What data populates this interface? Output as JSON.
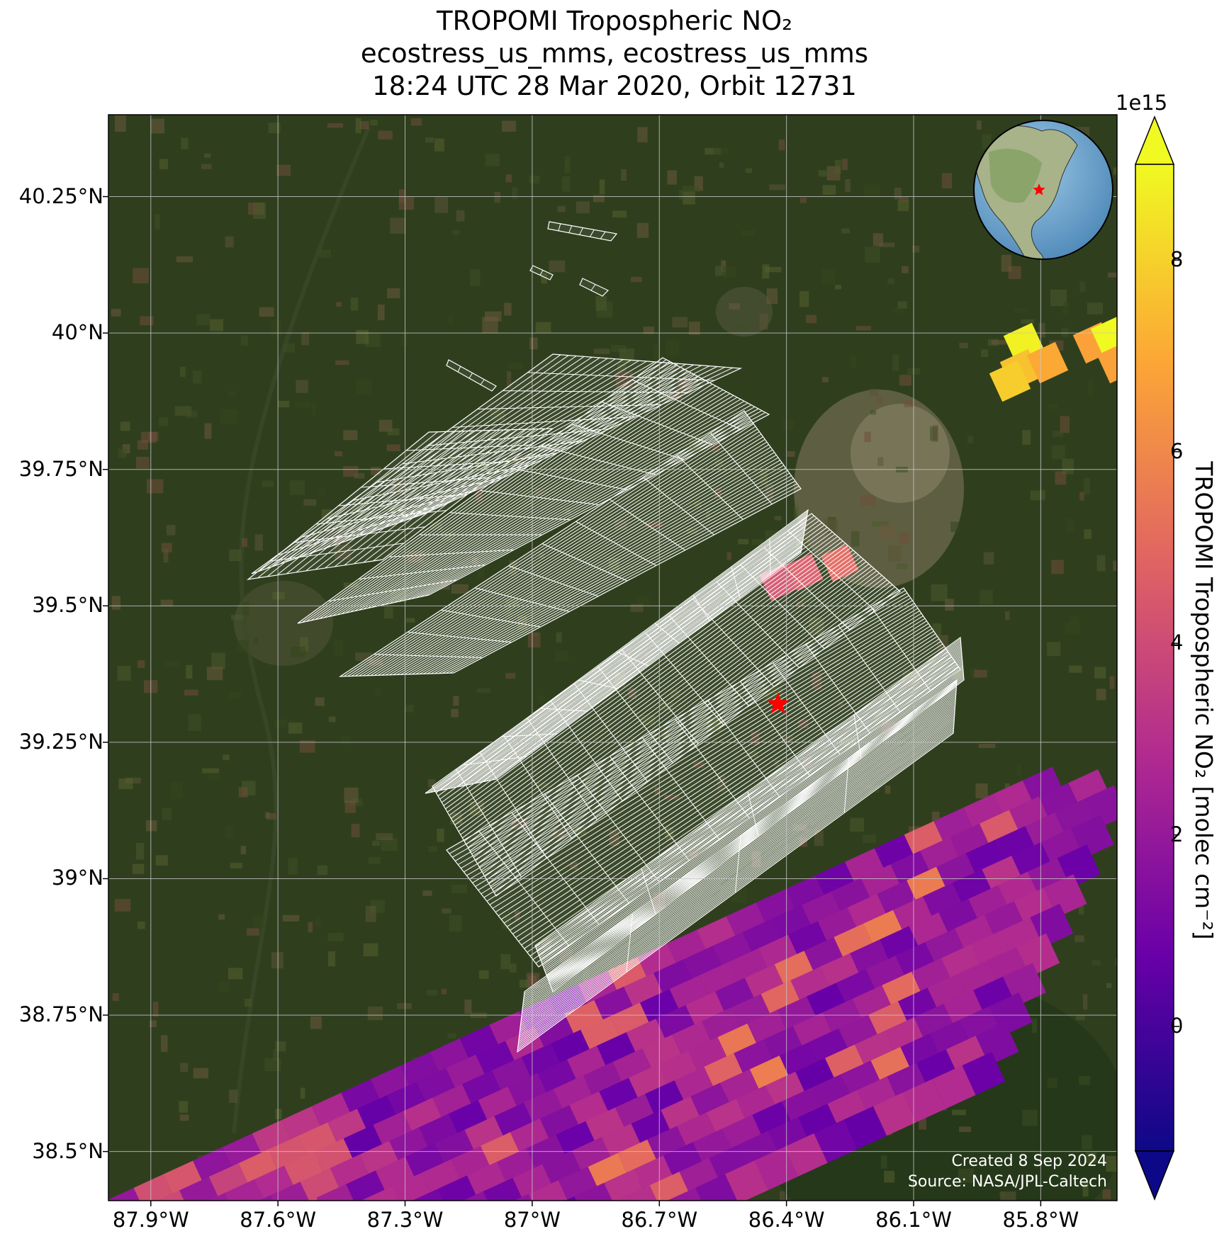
{
  "title": {
    "line1": "TROPOMI Tropospheric NO₂",
    "line2": "ecostress_us_mms, ecostress_us_mms",
    "line3": "18:24 UTC 28 Mar 2020, Orbit 12731"
  },
  "axes": {
    "lat_ticks": [
      "40.25°N",
      "40°N",
      "39.75°N",
      "39.5°N",
      "39.25°N",
      "39°N",
      "38.75°N",
      "38.5°N"
    ],
    "lon_ticks": [
      "87.9°W",
      "87.6°W",
      "87.3°W",
      "87°W",
      "86.7°W",
      "86.4°W",
      "86.1°W",
      "85.8°W"
    ],
    "lat_range": [
      38.41,
      40.4
    ],
    "lon_range": [
      -88.0,
      -85.62
    ]
  },
  "colorbar": {
    "label": "TROPOMI Tropospheric NO₂ [molec cm⁻²]",
    "exponent": "1e15",
    "ticks": [
      "8",
      "6",
      "4",
      "2",
      "0"
    ],
    "range": [
      -1.3,
      9.0
    ],
    "colormap": "plasma",
    "colors": [
      "#0d0887",
      "#6a00a8",
      "#b12a90",
      "#e16462",
      "#fca636",
      "#f0f921"
    ]
  },
  "marker": {
    "lat": 39.32,
    "lon": -86.42,
    "color": "#ff0000",
    "icon": "red-star-icon"
  },
  "inset": {
    "icon": "globe-icon",
    "region": "North America",
    "marker_color": "#ff0000"
  },
  "credits": {
    "created": "Created 8 Sep 2024",
    "source": "Source: NASA/JPL-Caltech"
  },
  "grid": true
}
